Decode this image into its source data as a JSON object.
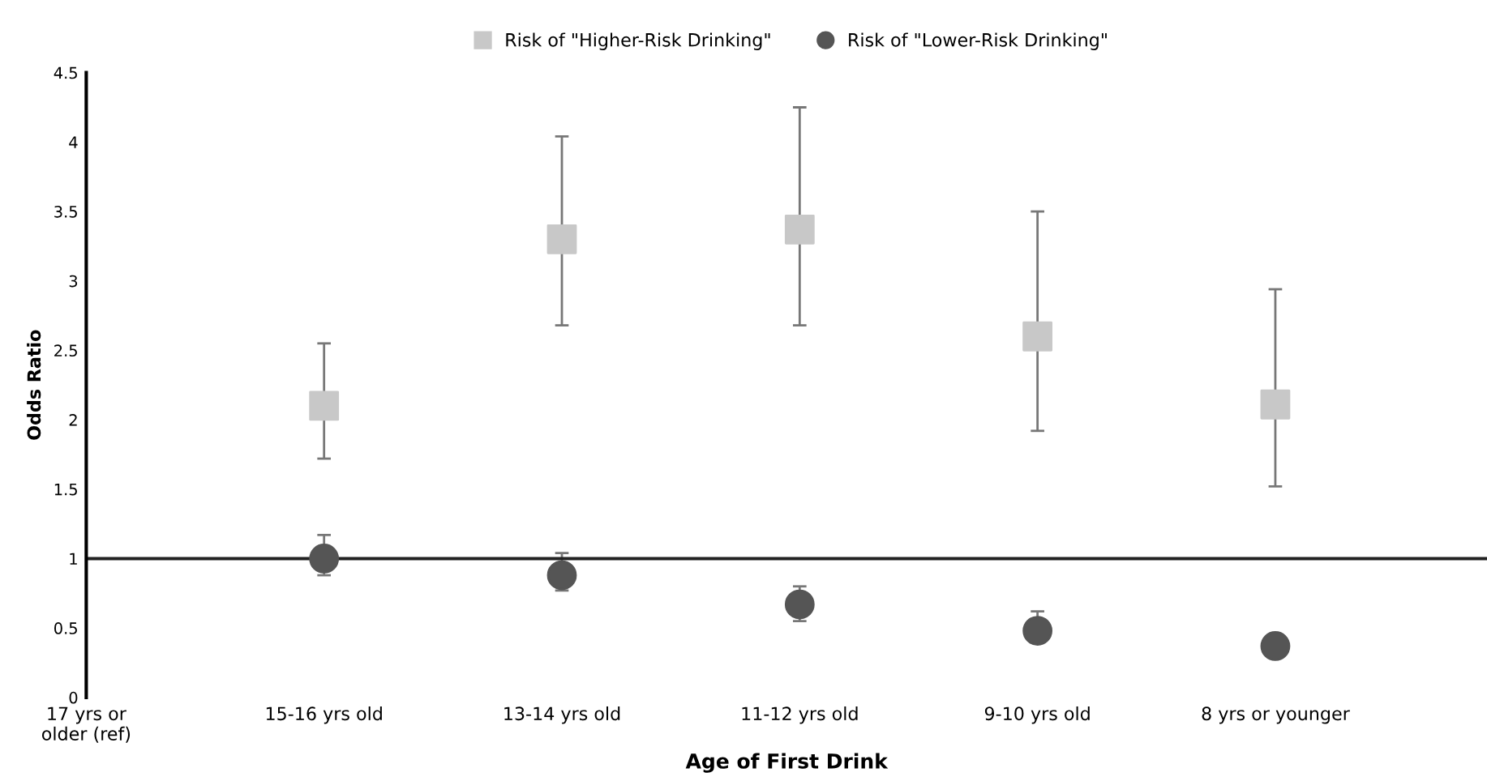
{
  "chart_data": {
    "type": "scatter",
    "xlabel": "Age of First Drink",
    "ylabel": "Odds Ratio",
    "categories": [
      "17 yrs or\nolder (ref)",
      "15-16 yrs old",
      "13-14 yrs old",
      "11-12 yrs old",
      "9-10 yrs old",
      "8 yrs or younger"
    ],
    "series": [
      {
        "name": "Risk of \"Higher-Risk Drinking\"",
        "color": "#c8c8c8",
        "marker": "square",
        "values": [
          null,
          2.1,
          3.3,
          3.37,
          2.6,
          2.11
        ],
        "errors": [
          null,
          [
            1.72,
            2.55
          ],
          [
            2.68,
            4.04
          ],
          [
            2.68,
            4.25
          ],
          [
            1.92,
            3.5
          ],
          [
            1.52,
            2.94
          ]
        ]
      },
      {
        "name": "Risk of \"Lower-Risk Drinking\"",
        "color": "#555555",
        "marker": "circle",
        "values": [
          null,
          1.0,
          0.88,
          0.67,
          0.48,
          0.37
        ],
        "errors": [
          null,
          [
            0.88,
            1.17
          ],
          [
            0.77,
            1.04
          ],
          [
            0.55,
            0.8
          ],
          [
            0.41,
            0.62
          ],
          null
        ]
      }
    ],
    "ylim": [
      0,
      4.5
    ],
    "yticks": [
      0,
      0.5,
      1,
      1.5,
      2,
      2.5,
      3,
      3.5,
      4,
      4.5
    ],
    "ref_lines": [
      {
        "axis": "y",
        "value": 1,
        "color": "#222222",
        "line_style": "solid"
      }
    ],
    "grid": false,
    "legend": "top"
  }
}
